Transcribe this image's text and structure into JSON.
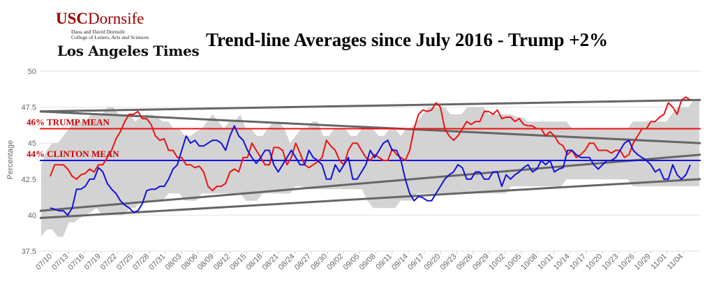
{
  "logo": {
    "usc_prefix": "USC",
    "usc_name": "Dornsife",
    "line1": "Dana and David Dornsife",
    "line2": "College of Letters, Arts and Sciences",
    "newspaper": "Los Angeles Times"
  },
  "chart_data": {
    "type": "line",
    "title": "Trend-line Averages since July 2016 - Trump +2%",
    "ylabel": "Percentage",
    "ylim": [
      37.5,
      50
    ],
    "yticks": [
      "37.5",
      "40",
      "42.5",
      "45",
      "47.5",
      "50"
    ],
    "x_tick_labels": [
      "07/10",
      "07/13",
      "07/16",
      "07/19",
      "07/22",
      "07/25",
      "07/28",
      "07/31",
      "08/03",
      "08/06",
      "08/09",
      "08/12",
      "08/15",
      "08/18",
      "08/21",
      "08/24",
      "08/27",
      "08/30",
      "09/02",
      "09/05",
      "09/08",
      "09/11",
      "09/14",
      "09/17",
      "09/20",
      "09/23",
      "09/26",
      "09/29",
      "10/02",
      "10/05",
      "10/08",
      "10/11",
      "10/14",
      "10/17",
      "10/20",
      "10/23",
      "10/26",
      "10/29",
      "11/01",
      "11/04"
    ],
    "grid": true,
    "colors": {
      "trump": "#ee1111",
      "clinton": "#1111dd",
      "band": "#d3d3d3",
      "trend": "#666666",
      "mean_label": "#cc0000"
    },
    "mean_lines": [
      {
        "label": "46% TRUMP MEAN",
        "value": 46
      },
      {
        "label": "44% CLINTON MEAN",
        "value": 43.8
      }
    ],
    "trend_lines": [
      {
        "from": 47.2,
        "to": 48.0
      },
      {
        "from": 47.2,
        "to": 45.0
      },
      {
        "from": 40.3,
        "to": 44.2
      },
      {
        "from": 39.8,
        "to": 42.5
      }
    ],
    "band": {
      "upper": [
        43.5,
        44.5,
        45.0,
        45.0,
        45.5,
        46.0,
        46.5,
        46.5,
        46.5,
        47.0,
        47.0,
        47.0,
        47.5,
        47.5,
        47.0,
        47.0,
        47.0,
        46.5,
        46.8,
        47.0,
        47.0,
        46.8,
        46.5,
        46.5,
        46.0,
        46.0,
        45.5,
        45.5,
        45.8,
        46.0,
        46.5,
        47.0,
        46.5,
        46.0,
        46.5,
        46.5,
        47.0,
        46.0,
        46.0,
        45.5,
        45.5,
        46.0,
        46.5,
        46.5,
        46.0,
        45.0,
        45.5,
        46.0,
        46.0,
        46.5,
        46.5,
        45.5,
        45.5,
        46.0,
        46.0,
        46.0,
        45.5,
        45.5,
        46.0,
        46.0,
        46.0,
        45.5,
        45.5,
        46.0,
        46.0,
        45.5,
        46.0,
        46.0,
        46.5,
        47.0,
        47.5,
        47.5,
        47.5,
        47.5,
        47.0,
        47.0,
        47.0,
        47.5,
        47.5,
        47.5,
        47.5,
        47.0,
        47.0,
        47.0,
        47.0,
        47.0,
        46.8,
        46.8,
        46.5,
        46.5,
        46.5,
        46.5,
        46.5,
        46.5,
        46.5,
        46.5,
        46.0,
        46.0,
        46.0,
        46.0,
        46.0,
        46.0,
        46.0,
        46.0,
        46.0,
        46.0,
        46.0,
        46.5,
        46.5,
        46.5,
        46.5,
        46.5,
        46.5,
        46.5,
        47.0,
        47.5,
        47.5,
        47.5,
        48.0,
        48.0
      ],
      "lower": [
        38.5,
        39.0,
        39.0,
        38.5,
        38.5,
        39.5,
        39.5,
        39.8,
        40.0,
        40.2,
        40.5,
        40.0,
        40.0,
        40.0,
        40.0,
        40.0,
        40.5,
        40.5,
        41.0,
        41.0,
        41.0,
        41.0,
        41.0,
        41.5,
        41.5,
        41.5,
        41.0,
        41.0,
        41.0,
        41.5,
        41.5,
        41.5,
        41.5,
        41.5,
        41.5,
        41.5,
        41.5,
        41.0,
        41.0,
        41.0,
        41.5,
        41.5,
        41.5,
        41.5,
        41.5,
        41.5,
        42.0,
        42.0,
        41.8,
        41.8,
        41.8,
        41.8,
        41.8,
        41.8,
        41.8,
        41.8,
        41.8,
        41.8,
        41.8,
        41.0,
        40.5,
        40.5,
        40.5,
        40.5,
        40.5,
        41.0,
        41.0,
        41.0,
        41.5,
        41.5,
        41.5,
        41.5,
        41.5,
        41.5,
        41.5,
        41.5,
        41.5,
        41.5,
        41.5,
        41.5,
        41.5,
        41.5,
        41.5,
        41.5,
        41.5,
        42.0,
        42.0,
        42.0,
        42.0,
        42.0,
        42.0,
        42.0,
        42.0,
        42.0,
        42.0,
        42.5,
        42.5,
        42.5,
        42.5,
        42.5,
        42.5,
        42.5,
        42.5,
        42.5,
        42.5,
        42.5,
        42.5,
        42.0,
        42.0,
        42.0,
        42.0,
        42.0,
        42.0,
        42.0,
        42.0,
        42.0,
        42.0,
        42.0,
        42.0,
        42.0
      ]
    },
    "series": [
      {
        "name": "Trump",
        "values": [
          42.7,
          43.5,
          43.5,
          43.5,
          43.2,
          42.7,
          42.5,
          42.8,
          42.9,
          43.2,
          43.0,
          43.5,
          43.5,
          44.0,
          44.5,
          45.3,
          45.8,
          46.5,
          47.0,
          47.0,
          47.2,
          46.7,
          46.7,
          46.3,
          45.5,
          45.2,
          45.3,
          44.5,
          44.5,
          44.0,
          44.0,
          43.5,
          43.5,
          43.3,
          43.4,
          43.0,
          42.0,
          41.7,
          42.0,
          42.0,
          42.2,
          43.0,
          43.2,
          43.0,
          44.0,
          44.0,
          45.0,
          44.5,
          44.0,
          43.5,
          43.5,
          44.7,
          44.7,
          44.5,
          43.5,
          44.0,
          45.0,
          44.3,
          43.5,
          43.3,
          43.5,
          43.7,
          44.0,
          45.2,
          44.8,
          44.5,
          43.8,
          43.5,
          44.5,
          45.0,
          45.0,
          44.5,
          44.0,
          43.8,
          44.2,
          44.0,
          43.8,
          43.8,
          44.6,
          44.2,
          44.0,
          43.8,
          44.5,
          46.0,
          47.0,
          47.3,
          47.2,
          47.3,
          47.8,
          47.5,
          46.0,
          45.5,
          45.2,
          45.5,
          46.0,
          46.5,
          46.3,
          46.5,
          46.5,
          47.2,
          47.2,
          47.0,
          47.3,
          46.7,
          46.8,
          46.8,
          46.5,
          46.7,
          46.3,
          46.2,
          46.2,
          46.0,
          46.0,
          45.5,
          45.8,
          45.5,
          45.0,
          44.8,
          44.2,
          44.5,
          44.0,
          44.2,
          44.5,
          45.0,
          45.0,
          44.5,
          44.5,
          44.5,
          44.3,
          44.5,
          44.5,
          44.0,
          44.2,
          45.0,
          45.5,
          46.0,
          46.0,
          46.5,
          46.5,
          46.8,
          47.0,
          47.8,
          47.5,
          47.0,
          48.0,
          48.2,
          48.0
        ],
        "color": "#ee1111"
      },
      {
        "name": "Clinton",
        "values": [
          40.5,
          40.4,
          40.3,
          40.3,
          40.0,
          40.5,
          41.8,
          41.8,
          42.0,
          42.5,
          42.5,
          43.3,
          43.0,
          42.2,
          41.8,
          41.5,
          41.0,
          40.7,
          40.5,
          40.2,
          40.3,
          40.8,
          41.7,
          41.8,
          41.8,
          42.0,
          42.0,
          42.5,
          43.2,
          43.5,
          44.5,
          45.5,
          45.0,
          45.2,
          44.8,
          44.8,
          45.0,
          45.2,
          45.2,
          45.0,
          44.5,
          45.5,
          46.2,
          45.5,
          45.2,
          44.5,
          44.0,
          43.6,
          44.0,
          44.5,
          44.5,
          43.5,
          43.0,
          43.5,
          44.0,
          44.5,
          44.0,
          43.5,
          43.5,
          44.5,
          44.0,
          43.8,
          43.5,
          42.5,
          42.5,
          43.5,
          43.0,
          43.5,
          44.0,
          42.5,
          42.5,
          43.0,
          43.5,
          44.5,
          44.0,
          44.5,
          45.0,
          45.2,
          44.5,
          44.5,
          43.8,
          42.5,
          41.5,
          41.0,
          41.3,
          41.2,
          41.0,
          41.0,
          41.5,
          42.0,
          42.5,
          42.8,
          43.0,
          43.5,
          43.3,
          42.5,
          42.5,
          43.0,
          43.0,
          42.5,
          42.5,
          43.0,
          43.0,
          42.0,
          42.8,
          42.5,
          42.8,
          43.0,
          43.3,
          43.5,
          43.0,
          43.2,
          43.8,
          43.5,
          43.8,
          43.0,
          43.2,
          43.3,
          44.5,
          44.5,
          44.2,
          44.0,
          44.0,
          44.0,
          43.5,
          43.2,
          43.5,
          43.8,
          43.8,
          44.0,
          44.5,
          45.0,
          45.2,
          44.5,
          44.2,
          44.0,
          43.8,
          43.5,
          43.0,
          43.2,
          42.5,
          42.5,
          43.5,
          42.8,
          42.5,
          42.8,
          43.5
        ],
        "color": "#1111dd"
      }
    ]
  }
}
